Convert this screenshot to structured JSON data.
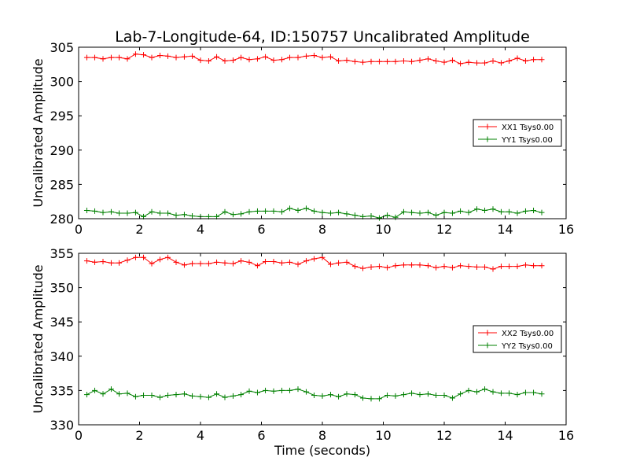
{
  "title": "Lab-7-Longitude-64, ID:150757 Uncalibrated Amplitude",
  "colors": {
    "xx": "#ff0000",
    "yy": "#008000"
  },
  "chart_data": [
    {
      "type": "line",
      "title": "Lab-7-Longitude-64, ID:150757 Uncalibrated Amplitude",
      "xlabel": "",
      "ylabel": "Uncalibrated Amplitude",
      "xlim": [
        0,
        16
      ],
      "ylim": [
        280,
        305
      ],
      "xticks": [
        0,
        2,
        4,
        6,
        8,
        10,
        12,
        14,
        16
      ],
      "yticks": [
        280,
        285,
        290,
        295,
        300,
        305
      ],
      "grid": false,
      "legend": "center-right",
      "x": [
        0.27,
        0.53,
        0.8,
        1.07,
        1.33,
        1.6,
        1.87,
        2.13,
        2.4,
        2.67,
        2.93,
        3.2,
        3.47,
        3.73,
        4.0,
        4.27,
        4.53,
        4.8,
        5.07,
        5.33,
        5.6,
        5.87,
        6.13,
        6.4,
        6.67,
        6.93,
        7.2,
        7.47,
        7.73,
        8.0,
        8.27,
        8.53,
        8.8,
        9.07,
        9.33,
        9.6,
        9.87,
        10.13,
        10.4,
        10.67,
        10.93,
        11.2,
        11.47,
        11.73,
        12.0,
        12.27,
        12.53,
        12.8,
        13.07,
        13.33,
        13.6,
        13.87,
        14.13,
        14.4,
        14.67,
        14.93,
        15.2
      ],
      "series": [
        {
          "name": "XX1 Tsys0.00",
          "color": "#ff0000",
          "values": [
            303.5,
            303.5,
            303.3,
            303.5,
            303.5,
            303.3,
            304.0,
            303.9,
            303.5,
            303.8,
            303.7,
            303.5,
            303.6,
            303.7,
            303.1,
            303.0,
            303.6,
            303.0,
            303.1,
            303.5,
            303.2,
            303.3,
            303.6,
            303.1,
            303.2,
            303.5,
            303.5,
            303.7,
            303.8,
            303.5,
            303.6,
            303.0,
            303.1,
            302.9,
            302.8,
            302.9,
            302.9,
            302.9,
            302.9,
            303.0,
            302.9,
            303.1,
            303.3,
            303.0,
            302.8,
            303.1,
            302.6,
            302.8,
            302.7,
            302.7,
            303.0,
            302.7,
            303.0,
            303.4,
            303.0,
            303.2,
            303.2
          ]
        },
        {
          "name": "YY1 Tsys0.00",
          "color": "#008000",
          "values": [
            281.2,
            281.1,
            280.9,
            281.0,
            280.8,
            280.8,
            280.9,
            280.3,
            281.0,
            280.8,
            280.8,
            280.5,
            280.6,
            280.4,
            280.3,
            280.3,
            280.3,
            281.0,
            280.6,
            280.7,
            281.0,
            281.1,
            281.1,
            281.1,
            281.0,
            281.5,
            281.2,
            281.5,
            281.1,
            280.9,
            280.8,
            280.9,
            280.7,
            280.5,
            280.3,
            280.4,
            280.1,
            280.5,
            280.2,
            281.0,
            280.9,
            280.8,
            280.9,
            280.5,
            280.9,
            280.8,
            281.1,
            280.9,
            281.4,
            281.2,
            281.4,
            281.0,
            281.0,
            280.8,
            281.1,
            281.2,
            280.9
          ]
        }
      ]
    },
    {
      "type": "line",
      "title": "",
      "xlabel": "Time (seconds)",
      "ylabel": "Uncalibrated Amplitude",
      "xlim": [
        0,
        16
      ],
      "ylim": [
        330,
        355
      ],
      "xticks": [
        0,
        2,
        4,
        6,
        8,
        10,
        12,
        14,
        16
      ],
      "yticks": [
        330,
        335,
        340,
        345,
        350,
        355
      ],
      "grid": false,
      "legend": "center-right",
      "x": [
        0.27,
        0.53,
        0.8,
        1.07,
        1.33,
        1.6,
        1.87,
        2.13,
        2.4,
        2.67,
        2.93,
        3.2,
        3.47,
        3.73,
        4.0,
        4.27,
        4.53,
        4.8,
        5.07,
        5.33,
        5.6,
        5.87,
        6.13,
        6.4,
        6.67,
        6.93,
        7.2,
        7.47,
        7.73,
        8.0,
        8.27,
        8.53,
        8.8,
        9.07,
        9.33,
        9.6,
        9.87,
        10.13,
        10.4,
        10.67,
        10.93,
        11.2,
        11.47,
        11.73,
        12.0,
        12.27,
        12.53,
        12.8,
        13.07,
        13.33,
        13.6,
        13.87,
        14.13,
        14.4,
        14.67,
        14.93,
        15.2
      ],
      "series": [
        {
          "name": "XX2 Tsys0.00",
          "color": "#ff0000",
          "values": [
            353.9,
            353.7,
            353.8,
            353.6,
            353.6,
            354.0,
            354.4,
            354.4,
            353.5,
            354.1,
            354.4,
            353.7,
            353.3,
            353.5,
            353.5,
            353.5,
            353.7,
            353.6,
            353.5,
            353.9,
            353.7,
            353.2,
            353.8,
            353.8,
            353.6,
            353.7,
            353.4,
            353.9,
            354.2,
            354.4,
            353.4,
            353.6,
            353.7,
            353.1,
            352.8,
            353.0,
            353.1,
            352.9,
            353.2,
            353.3,
            353.3,
            353.3,
            353.2,
            352.9,
            353.1,
            352.9,
            353.2,
            353.1,
            353.0,
            353.0,
            352.7,
            353.1,
            353.1,
            353.1,
            353.3,
            353.2,
            353.2
          ]
        },
        {
          "name": "YY2 Tsys0.00",
          "color": "#008000",
          "values": [
            334.4,
            335.0,
            334.5,
            335.2,
            334.5,
            334.6,
            334.1,
            334.3,
            334.3,
            334.0,
            334.3,
            334.4,
            334.5,
            334.2,
            334.1,
            334.0,
            334.5,
            334.0,
            334.2,
            334.4,
            334.9,
            334.7,
            335.0,
            334.9,
            335.0,
            335.0,
            335.2,
            334.8,
            334.3,
            334.2,
            334.4,
            334.1,
            334.5,
            334.4,
            333.9,
            333.8,
            333.8,
            334.3,
            334.2,
            334.4,
            334.6,
            334.4,
            334.5,
            334.3,
            334.3,
            333.9,
            334.5,
            335.0,
            334.8,
            335.2,
            334.8,
            334.6,
            334.6,
            334.4,
            334.7,
            334.7,
            334.5
          ]
        }
      ]
    }
  ]
}
